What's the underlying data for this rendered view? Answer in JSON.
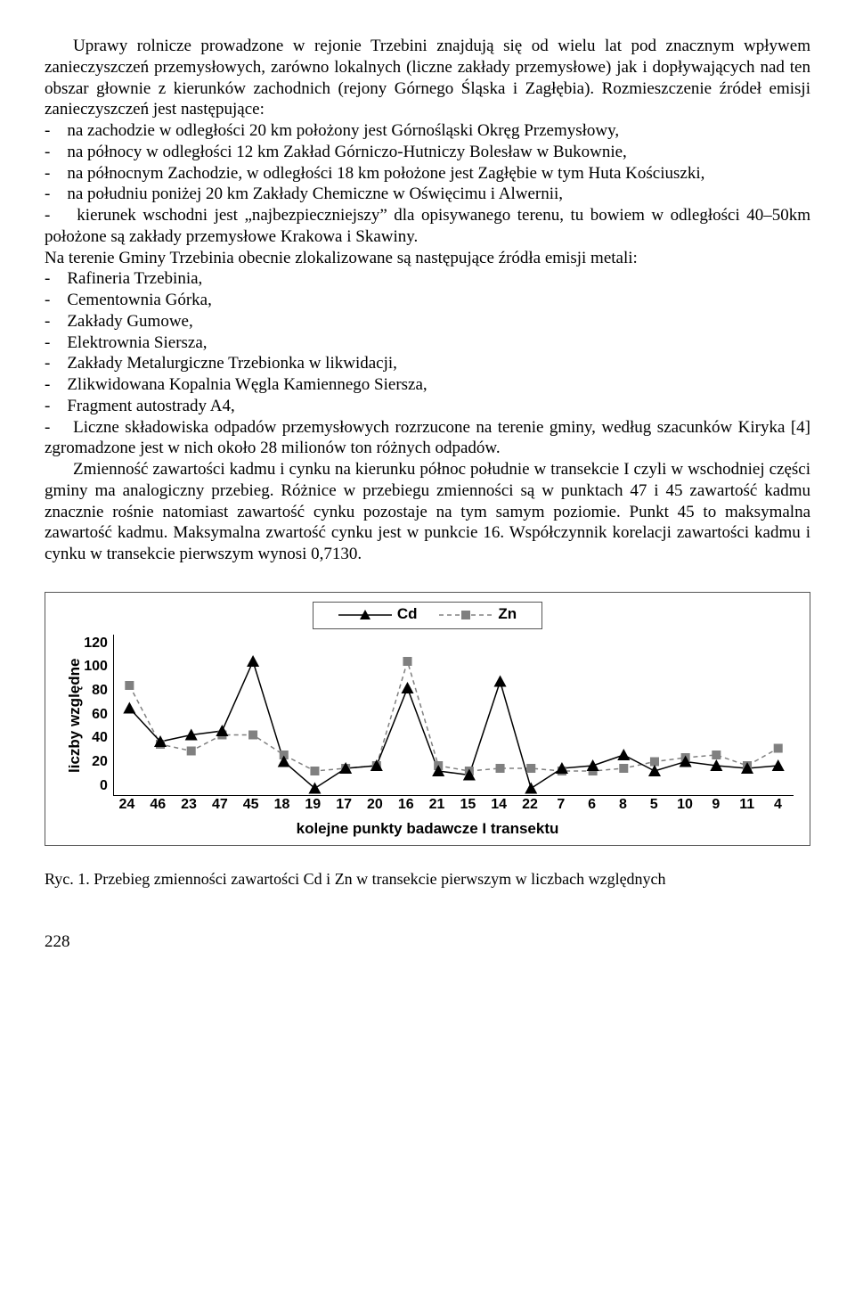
{
  "para1": "Uprawy rolnicze prowadzone w rejonie Trzebini znajdują się od wielu lat pod znacznym wpływem zanieczyszczeń przemysłowych, zarówno lokalnych (liczne zakłady przemysłowe) jak i dopływających nad ten obszar głownie z kierunków zachodnich (rejony Górnego Śląska i Zagłębia). Rozmieszczenie źródeł emisji zanieczyszczeń jest następujące:",
  "bullets1": [
    "-    na zachodzie w odległości 20 km położony jest Górnośląski Okręg Przemysłowy,",
    "-    na północy w odległości 12 km Zakład Górniczo-Hutniczy Bolesław w Bukownie,",
    "-    na północnym Zachodzie, w odległości 18 km położone jest Zagłębie w tym Huta Kościuszki,",
    "-    na południu poniżej 20 km Zakłady Chemiczne w Oświęcimu i Alwernii,",
    "-    kierunek wschodni jest „najbezpieczniejszy” dla opisywanego terenu, tu bowiem w odległości 40–50km położone są zakłady przemysłowe Krakowa i Skawiny."
  ],
  "para2": "Na terenie Gminy Trzebinia obecnie zlokalizowane są następujące źródła emisji metali:",
  "bullets2": [
    "-    Rafineria Trzebinia,",
    "-    Cementownia Górka,",
    "-    Zakłady Gumowe,",
    "-    Elektrownia Siersza,",
    "-    Zakłady Metalurgiczne Trzebionka w likwidacji,",
    "-    Zlikwidowana Kopalnia Węgla Kamiennego Siersza,",
    "-    Fragment autostrady A4,",
    "-    Liczne składowiska odpadów przemysłowych rozrzucone na terenie gminy, według szacunków Kiryka [4] zgromadzone jest w nich około 28 milionów ton różnych odpadów."
  ],
  "para3": "Zmienność zawartości kadmu i cynku na kierunku północ południe w transekcie I czyli w wschodniej części gminy ma analogiczny przebieg. Różnice w przebiegu zmienności są w punktach 47 i 45 zawartość kadmu znacznie rośnie natomiast zawartość cynku pozostaje na tym samym poziomie. Punkt 45 to maksymalna zawartość kadmu. Maksymalna zwartość cynku jest w punkcie 16. Współczynnik korelacji zawartości kadmu i cynku w transekcie pierwszym wynosi 0,7130.",
  "chart": {
    "type": "line",
    "legend": {
      "cd": "Cd",
      "zn": "Zn"
    },
    "ylabel": "liczby względne",
    "xlabel": "kolejne punkty badawcze I transektu",
    "ylim": [
      0,
      120
    ],
    "ytick_step": 20,
    "yticks": [
      "120",
      "100",
      "80",
      "60",
      "40",
      "20",
      "0"
    ],
    "categories": [
      "24",
      "46",
      "23",
      "47",
      "45",
      "18",
      "19",
      "17",
      "20",
      "16",
      "21",
      "15",
      "14",
      "22",
      "7",
      "6",
      "8",
      "5",
      "10",
      "9",
      "11",
      "4"
    ],
    "cd_values": [
      65,
      40,
      45,
      48,
      100,
      25,
      5,
      20,
      22,
      80,
      18,
      15,
      85,
      5,
      20,
      22,
      30,
      18,
      25,
      22,
      20,
      22
    ],
    "zn_values": [
      82,
      38,
      33,
      45,
      45,
      30,
      18,
      20,
      22,
      100,
      22,
      18,
      20,
      20,
      18,
      18,
      20,
      25,
      28,
      30,
      22,
      35
    ],
    "cd_color": "#000000",
    "zn_color": "#808080",
    "marker_cd": "triangle",
    "marker_zn": "square",
    "zn_dash": "5,4",
    "background_color": "#ffffff",
    "axis_color": "#000000",
    "font_family": "Arial",
    "label_fontsize": 17
  },
  "caption": "Ryc. 1. Przebieg zmienności zawartości Cd i Zn w transekcie pierwszym w liczbach względnych",
  "page_number": "228"
}
